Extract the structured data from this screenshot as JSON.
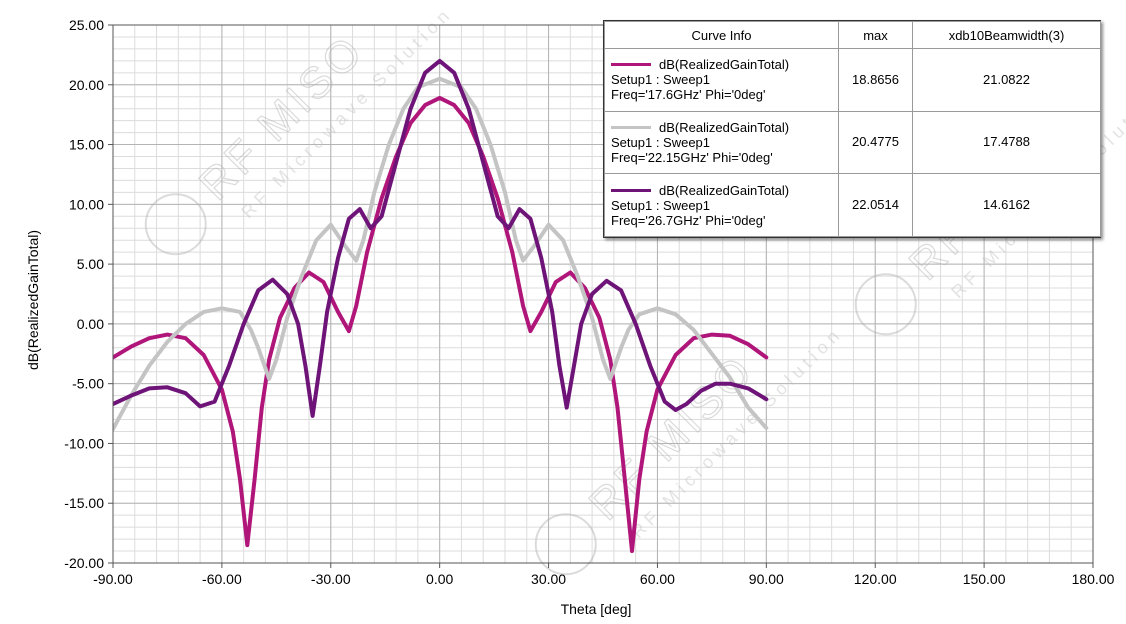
{
  "chart_data": {
    "type": "line",
    "xlabel": "Theta [deg]",
    "ylabel": "dB(RealizedGainTotal)",
    "xlim": [
      -90,
      180
    ],
    "ylim": [
      -20,
      25
    ],
    "x_ticks": [
      "-90.00",
      "-60.00",
      "-30.00",
      "0.00",
      "30.00",
      "60.00",
      "90.00",
      "120.00",
      "150.00",
      "180.00"
    ],
    "y_ticks": [
      "25.00",
      "20.00",
      "15.00",
      "10.00",
      "5.00",
      "0.00",
      "-5.00",
      "-10.00",
      "-15.00",
      "-20.00"
    ],
    "grid": true,
    "legend_placement": "top-right",
    "legend": {
      "headers": [
        "Curve Info",
        "max",
        "xdb10Beamwidth(3)"
      ]
    },
    "series": [
      {
        "name": "dB(RealizedGainTotal)",
        "setup": "Setup1 : Sweep1",
        "freq": "Freq='17.6GHz' Phi='0deg'",
        "max": "18.8656",
        "beamwidth": "21.0822",
        "color": "#b0157a",
        "points": [
          [
            -90,
            -2.8
          ],
          [
            -85,
            -1.9
          ],
          [
            -80,
            -1.2
          ],
          [
            -75,
            -0.9
          ],
          [
            -70,
            -1.2
          ],
          [
            -65,
            -2.6
          ],
          [
            -60,
            -5.5
          ],
          [
            -57,
            -9
          ],
          [
            -55,
            -13
          ],
          [
            -53,
            -18.5
          ],
          [
            -51,
            -13
          ],
          [
            -49,
            -7
          ],
          [
            -47,
            -3
          ],
          [
            -44,
            0.5
          ],
          [
            -40,
            3
          ],
          [
            -36,
            4.3
          ],
          [
            -32,
            3.5
          ],
          [
            -28,
            1
          ],
          [
            -25,
            -0.6
          ],
          [
            -23,
            1.5
          ],
          [
            -20,
            6
          ],
          [
            -16,
            10.5
          ],
          [
            -12,
            14
          ],
          [
            -8,
            16.8
          ],
          [
            -4,
            18.3
          ],
          [
            0,
            18.9
          ],
          [
            4,
            18.3
          ],
          [
            8,
            16.8
          ],
          [
            12,
            14
          ],
          [
            16,
            10.5
          ],
          [
            20,
            6
          ],
          [
            23,
            1.5
          ],
          [
            25,
            -0.6
          ],
          [
            28,
            1
          ],
          [
            32,
            3.5
          ],
          [
            36,
            4.3
          ],
          [
            40,
            3
          ],
          [
            44,
            0.5
          ],
          [
            47,
            -3
          ],
          [
            49,
            -7
          ],
          [
            51,
            -13
          ],
          [
            53,
            -19
          ],
          [
            55,
            -13
          ],
          [
            57,
            -9
          ],
          [
            60,
            -5.5
          ],
          [
            65,
            -2.6
          ],
          [
            70,
            -1.2
          ],
          [
            75,
            -0.9
          ],
          [
            80,
            -1.0
          ],
          [
            85,
            -1.7
          ],
          [
            90,
            -2.8
          ]
        ]
      },
      {
        "name": "dB(RealizedGainTotal)",
        "setup": "Setup1 : Sweep1",
        "freq": "Freq='22.15GHz' Phi='0deg'",
        "max": "20.4775",
        "beamwidth": "17.4788",
        "color": "#c4c4c4",
        "points": [
          [
            -90,
            -8.8
          ],
          [
            -85,
            -6
          ],
          [
            -80,
            -3.5
          ],
          [
            -75,
            -1.5
          ],
          [
            -70,
            0
          ],
          [
            -65,
            1
          ],
          [
            -60,
            1.3
          ],
          [
            -55,
            1
          ],
          [
            -52,
            -0.5
          ],
          [
            -50,
            -2
          ],
          [
            -47,
            -4.6
          ],
          [
            -45,
            -3
          ],
          [
            -42,
            0.5
          ],
          [
            -38,
            4
          ],
          [
            -34,
            7
          ],
          [
            -30,
            8.3
          ],
          [
            -26,
            6.5
          ],
          [
            -23,
            5.3
          ],
          [
            -21,
            7
          ],
          [
            -18,
            11
          ],
          [
            -14,
            15
          ],
          [
            -10,
            18
          ],
          [
            -6,
            19.8
          ],
          [
            0,
            20.5
          ],
          [
            6,
            19.8
          ],
          [
            10,
            18
          ],
          [
            14,
            15
          ],
          [
            18,
            11
          ],
          [
            21,
            7
          ],
          [
            23,
            5.3
          ],
          [
            26,
            6.5
          ],
          [
            30,
            8.3
          ],
          [
            34,
            7
          ],
          [
            38,
            4
          ],
          [
            42,
            0.5
          ],
          [
            45,
            -3
          ],
          [
            47,
            -4.6
          ],
          [
            50,
            -2
          ],
          [
            52,
            -0.5
          ],
          [
            55,
            0.8
          ],
          [
            60,
            1.3
          ],
          [
            65,
            0.8
          ],
          [
            70,
            -0.5
          ],
          [
            75,
            -2.5
          ],
          [
            80,
            -4.5
          ],
          [
            85,
            -7
          ],
          [
            90,
            -8.7
          ]
        ]
      },
      {
        "name": "dB(RealizedGainTotal)",
        "setup": "Setup1 : Sweep1",
        "freq": "Freq='26.7GHz' Phi='0deg'",
        "max": "22.0514",
        "beamwidth": "14.6162",
        "color": "#6e1478",
        "points": [
          [
            -90,
            -6.7
          ],
          [
            -85,
            -6
          ],
          [
            -80,
            -5.4
          ],
          [
            -75,
            -5.3
          ],
          [
            -70,
            -5.8
          ],
          [
            -66,
            -6.9
          ],
          [
            -62,
            -6.5
          ],
          [
            -58,
            -3.5
          ],
          [
            -54,
            0
          ],
          [
            -50,
            2.8
          ],
          [
            -46,
            3.7
          ],
          [
            -42,
            2.5
          ],
          [
            -39,
            0
          ],
          [
            -37,
            -3.5
          ],
          [
            -35,
            -7.7
          ],
          [
            -33,
            -3.5
          ],
          [
            -31,
            1
          ],
          [
            -28,
            5.5
          ],
          [
            -25,
            8.8
          ],
          [
            -22,
            9.6
          ],
          [
            -19,
            8
          ],
          [
            -16,
            9
          ],
          [
            -12,
            13.5
          ],
          [
            -8,
            18
          ],
          [
            -4,
            21
          ],
          [
            0,
            22
          ],
          [
            4,
            21
          ],
          [
            8,
            18
          ],
          [
            12,
            13.5
          ],
          [
            16,
            9
          ],
          [
            19,
            8
          ],
          [
            22,
            9.6
          ],
          [
            25,
            8.8
          ],
          [
            28,
            5.5
          ],
          [
            31,
            1
          ],
          [
            33,
            -3.5
          ],
          [
            35,
            -7
          ],
          [
            37,
            -3.5
          ],
          [
            39,
            0
          ],
          [
            42,
            2.5
          ],
          [
            46,
            3.6
          ],
          [
            50,
            2.8
          ],
          [
            54,
            0
          ],
          [
            58,
            -3.5
          ],
          [
            62,
            -6.5
          ],
          [
            65,
            -7.2
          ],
          [
            68,
            -6.7
          ],
          [
            72,
            -5.6
          ],
          [
            76,
            -5.0
          ],
          [
            80,
            -5.0
          ],
          [
            85,
            -5.4
          ],
          [
            90,
            -6.3
          ]
        ]
      }
    ],
    "watermark": {
      "brand": "RF MISO",
      "tagline": "RF Microwave Solution"
    }
  }
}
